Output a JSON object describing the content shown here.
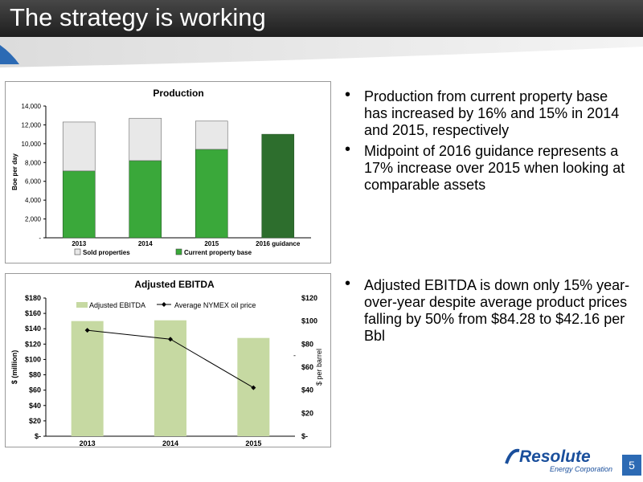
{
  "slide": {
    "title": "The strategy is working",
    "page_number": "5",
    "logo_name": "Resolute",
    "logo_sub": "Energy Corporation"
  },
  "bullets_top": [
    "Production from current property base has increased by 16% and 15% in 2014 and 2015, respectively",
    "Midpoint of 2016 guidance represents a 17% increase over 2015 when looking at comparable assets"
  ],
  "bullets_bottom": [
    "Adjusted EBITDA is down only 15% year-over-year despite average product prices falling by 50% from $84.28 to $42.16 per Bbl"
  ],
  "colors": {
    "current_base": "#3aa83a",
    "current_base_dark": "#2d6e2d",
    "sold": "#e8e8e8",
    "ebitda_bar": "#c6d9a2",
    "oil_line": "#000000"
  },
  "chart_data": [
    {
      "type": "bar",
      "stacked": true,
      "title": "Production",
      "ylabel": "Boe per day",
      "categories": [
        "2013",
        "2014",
        "2015",
        "2016 guidance"
      ],
      "series": [
        {
          "name": "Current property base",
          "values": [
            7100,
            8200,
            9400,
            11000
          ]
        },
        {
          "name": "Sold properties",
          "values": [
            5200,
            4500,
            3000,
            0
          ]
        }
      ],
      "ylim": [
        0,
        14000
      ],
      "yticks": [
        "-",
        "2,000",
        "4,000",
        "6,000",
        "8,000",
        "10,000",
        "12,000",
        "14,000"
      ],
      "legend": "bottom",
      "legend_order": [
        "Sold properties",
        "Current property base"
      ]
    },
    {
      "type": "bar",
      "title": "Adjusted EBITDA",
      "ylabel": "$ (million)",
      "y2label": "$ per barrel",
      "categories": [
        "2013",
        "2014",
        "2015"
      ],
      "series": [
        {
          "name": "Adjusted EBITDA",
          "values": [
            150,
            151,
            128
          ],
          "axis": "left",
          "kind": "bar"
        },
        {
          "name": "Average NYMEX oil price",
          "values": [
            92,
            84.28,
            42.16
          ],
          "axis": "right",
          "kind": "line"
        }
      ],
      "ylim": [
        0,
        180
      ],
      "y2lim": [
        0,
        120
      ],
      "yticks": [
        "$-",
        "$20",
        "$40",
        "$60",
        "$80",
        "$100",
        "$120",
        "$140",
        "$160",
        "$180"
      ],
      "y2ticks": [
        "$-",
        "$20",
        "$40",
        "$60",
        "$80",
        "$100",
        "$120"
      ],
      "y2_extra_mark": "-",
      "legend": "top"
    }
  ]
}
